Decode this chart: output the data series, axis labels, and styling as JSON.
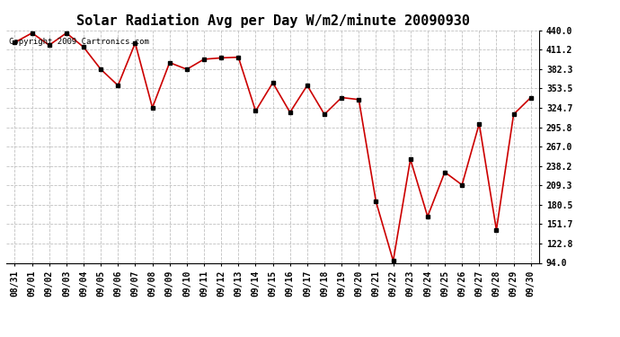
{
  "title": "Solar Radiation Avg per Day W/m2/minute 20090930",
  "copyright_text": "Copyright 2009 Cartronics.com",
  "labels": [
    "08/31",
    "09/01",
    "09/02",
    "09/03",
    "09/04",
    "09/05",
    "09/06",
    "09/07",
    "09/08",
    "09/09",
    "09/10",
    "09/11",
    "09/12",
    "09/13",
    "09/14",
    "09/15",
    "09/16",
    "09/17",
    "09/18",
    "09/19",
    "09/20",
    "09/21",
    "09/22",
    "09/23",
    "09/24",
    "09/25",
    "09/26",
    "09/27",
    "09/28",
    "09/29",
    "09/30"
  ],
  "values": [
    422,
    436,
    418,
    436,
    415,
    382,
    358,
    421,
    325,
    392,
    382,
    397,
    399,
    400,
    320,
    362,
    318,
    358,
    315,
    340,
    337,
    185,
    97,
    248,
    163,
    229,
    210,
    301,
    143,
    315,
    340
  ],
  "ymin": 94.0,
  "ymax": 440.0,
  "yticks": [
    94.0,
    122.8,
    151.7,
    180.5,
    209.3,
    238.2,
    267.0,
    295.8,
    324.7,
    353.5,
    382.3,
    411.2,
    440.0
  ],
  "line_color": "#cc0000",
  "marker_color": "#000000",
  "bg_color": "#ffffff",
  "grid_color": "#c0c0c0",
  "title_fontsize": 11,
  "tick_fontsize": 7,
  "copyright_fontsize": 6.5
}
